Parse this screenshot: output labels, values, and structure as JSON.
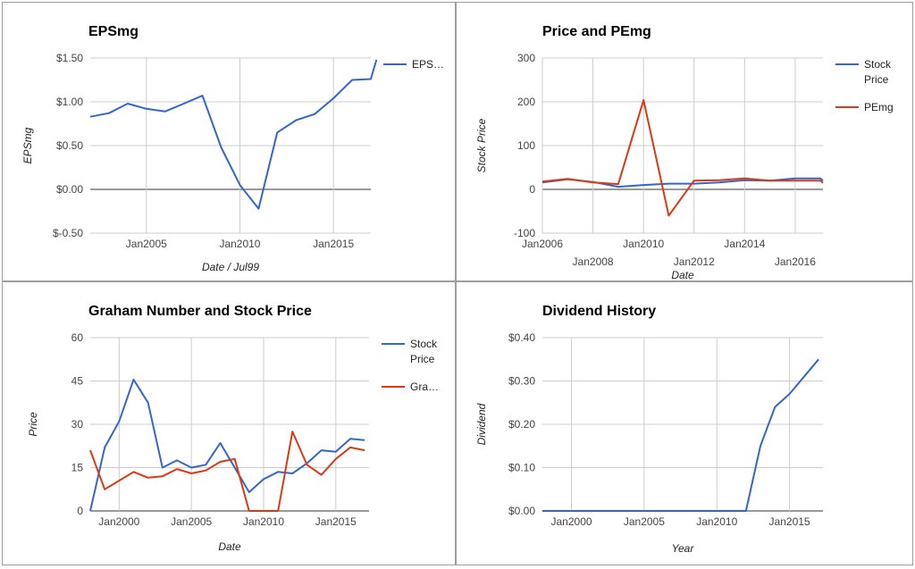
{
  "chart_data": [
    {
      "id": "eps",
      "type": "line",
      "title": "EPSmg",
      "xlabel": "Date / Jul99",
      "ylabel": "EPSmg",
      "xlim": [
        2002,
        2017
      ],
      "ylim": [
        -0.5,
        1.5
      ],
      "yticks": [
        {
          "v": 1.5,
          "label": "$1.50"
        },
        {
          "v": 1.0,
          "label": "$1.00"
        },
        {
          "v": 0.5,
          "label": "$0.50"
        },
        {
          "v": 0.0,
          "label": "$0.00"
        },
        {
          "v": -0.5,
          "label": "$-0.50"
        }
      ],
      "xticks": [
        {
          "v": 2005,
          "label": "Jan2005"
        },
        {
          "v": 2010,
          "label": "Jan2010"
        },
        {
          "v": 2015,
          "label": "Jan2015"
        }
      ],
      "grid": true,
      "legend": "right",
      "series": [
        {
          "name": "EPS…",
          "color": "#3366cc",
          "x": [
            2002,
            2003,
            2004,
            2005,
            2006,
            2007,
            2008,
            2009,
            2010,
            2011,
            2012,
            2013,
            2014,
            2015,
            2016,
            2017,
            2017.3
          ],
          "y": [
            0.83,
            0.87,
            0.98,
            0.92,
            0.89,
            0.98,
            1.07,
            0.48,
            0.05,
            -0.22,
            0.65,
            0.79,
            0.86,
            1.04,
            1.25,
            1.26,
            1.48
          ]
        }
      ]
    },
    {
      "id": "pe",
      "type": "line",
      "title": "Price and PEmg",
      "xlabel": "Date",
      "ylabel": "Stock Price",
      "xlim": [
        2006,
        2017.1
      ],
      "ylim": [
        -100,
        300
      ],
      "yticks": [
        {
          "v": 300,
          "label": "300"
        },
        {
          "v": 200,
          "label": "200"
        },
        {
          "v": 100,
          "label": "100"
        },
        {
          "v": 0,
          "label": "0"
        },
        {
          "v": -100,
          "label": "-100"
        }
      ],
      "xticks": [
        {
          "v": 2006,
          "label": "Jan2006",
          "row": 1
        },
        {
          "v": 2008,
          "label": "Jan2008",
          "row": 2
        },
        {
          "v": 2010,
          "label": "Jan2010",
          "row": 1
        },
        {
          "v": 2012,
          "label": "Jan2012",
          "row": 2
        },
        {
          "v": 2014,
          "label": "Jan2014",
          "row": 1
        },
        {
          "v": 2016,
          "label": "Jan2016",
          "row": 2
        }
      ],
      "grid": true,
      "legend": "right",
      "series": [
        {
          "name": "Stock Price",
          "color": "#3366cc",
          "x": [
            2006,
            2007,
            2008,
            2009,
            2010,
            2011,
            2012,
            2013,
            2014,
            2015,
            2016,
            2017,
            2017.1
          ],
          "y": [
            16,
            23,
            17,
            6,
            10,
            13,
            13,
            16,
            21,
            20,
            25,
            25,
            20
          ]
        },
        {
          "name": "PEmg",
          "color": "#dc3912",
          "x": [
            2006,
            2007,
            2008,
            2009,
            2010,
            2011,
            2012,
            2013,
            2014,
            2015,
            2016,
            2017,
            2017.1
          ],
          "y": [
            18,
            24,
            16,
            12,
            204,
            -60,
            20,
            21,
            25,
            20,
            20,
            20,
            15
          ]
        }
      ]
    },
    {
      "id": "graham",
      "type": "line",
      "title": "Graham Number and Stock Price",
      "xlabel": "Date",
      "ylabel": "Price",
      "xlim": [
        1998,
        2017.3
      ],
      "ylim": [
        0,
        60
      ],
      "yticks": [
        {
          "v": 60,
          "label": "60"
        },
        {
          "v": 45,
          "label": "45"
        },
        {
          "v": 30,
          "label": "30"
        },
        {
          "v": 15,
          "label": "15"
        },
        {
          "v": 0,
          "label": "0"
        }
      ],
      "xticks": [
        {
          "v": 2000,
          "label": "Jan2000"
        },
        {
          "v": 2005,
          "label": "Jan2005"
        },
        {
          "v": 2010,
          "label": "Jan2010"
        },
        {
          "v": 2015,
          "label": "Jan2015"
        }
      ],
      "grid": true,
      "legend": "right",
      "series": [
        {
          "name": "Stock Price",
          "color": "#3366cc",
          "x": [
            1998,
            1999,
            2000,
            2001,
            2002,
            2003,
            2004,
            2005,
            2006,
            2007,
            2008,
            2009,
            2010,
            2011,
            2012,
            2013,
            2014,
            2015,
            2016,
            2017
          ],
          "y": [
            0,
            22,
            31,
            45.5,
            37.5,
            15,
            17.5,
            15,
            16,
            23.5,
            15,
            6.5,
            11,
            13.5,
            13,
            16.5,
            21,
            20.5,
            25,
            24.5
          ]
        },
        {
          "name": "Gra…",
          "color": "#dc3912",
          "x": [
            1998,
            1999,
            2000,
            2001,
            2002,
            2003,
            2004,
            2005,
            2006,
            2007,
            2008,
            2009,
            2010,
            2011,
            2012,
            2013,
            2014,
            2015,
            2016,
            2017
          ],
          "y": [
            21,
            7.5,
            10.5,
            13.5,
            11.5,
            12,
            14.5,
            13,
            14,
            17,
            18,
            0,
            0,
            0,
            27.5,
            16,
            12.5,
            18,
            22,
            21
          ]
        }
      ]
    },
    {
      "id": "div",
      "type": "line",
      "title": "Dividend History",
      "xlabel": "Year",
      "ylabel": "Dividend",
      "xlim": [
        1998,
        2017.3
      ],
      "ylim": [
        0,
        0.4
      ],
      "yticks": [
        {
          "v": 0.4,
          "label": "$0.40"
        },
        {
          "v": 0.3,
          "label": "$0.30"
        },
        {
          "v": 0.2,
          "label": "$0.20"
        },
        {
          "v": 0.1,
          "label": "$0.10"
        },
        {
          "v": 0.0,
          "label": "$0.00"
        }
      ],
      "xticks": [
        {
          "v": 2000,
          "label": "Jan2000"
        },
        {
          "v": 2005,
          "label": "Jan2005"
        },
        {
          "v": 2010,
          "label": "Jan2010"
        },
        {
          "v": 2015,
          "label": "Jan2015"
        }
      ],
      "grid": true,
      "legend": "none",
      "series": [
        {
          "name": "",
          "color": "#3366cc",
          "x": [
            1998,
            2000,
            2002,
            2004,
            2006,
            2008,
            2010,
            2012,
            2013,
            2014,
            2015,
            2016,
            2017
          ],
          "y": [
            0,
            0,
            0,
            0,
            0,
            0,
            0,
            0,
            0.15,
            0.24,
            0.27,
            0.31,
            0.35
          ]
        }
      ]
    }
  ]
}
